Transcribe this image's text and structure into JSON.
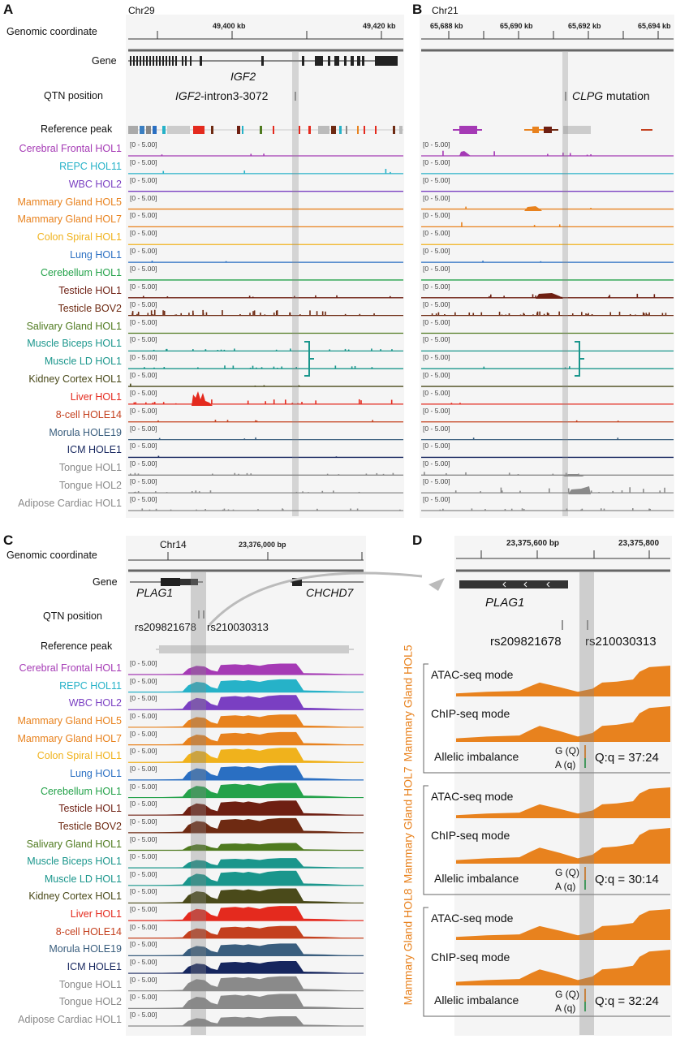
{
  "panels": {
    "A": "A",
    "B": "B",
    "C": "C",
    "D": "D"
  },
  "A": {
    "chrom": "Chr29",
    "coord_label": "Genomic coordinate",
    "ticks": [
      "49,400 kb",
      "49,420 kb"
    ],
    "gene_label": "Gene",
    "gene_name": "IGF2",
    "qtn_label": "QTN position",
    "qtn_name_italic": "IGF2",
    "qtn_name_rest": "-intron3-3072",
    "peak_label": "Reference peak"
  },
  "B": {
    "chrom": "Chr21",
    "ticks": [
      "65,688 kb",
      "65,690 kb",
      "65,692 kb",
      "65,694 kb"
    ],
    "mutation_italic": "CLPG",
    "mutation_rest": " mutation"
  },
  "C": {
    "chrom": "Chr14",
    "coord_label": "Genomic coordinate",
    "tick": "23,376,000 bp",
    "gene_label": "Gene",
    "gene1": "PLAG1",
    "gene2": "CHCHD7",
    "qtn_label": "QTN position",
    "snp1": "rs209821678",
    "snp2": "rs210030313",
    "peak_label": "Reference peak"
  },
  "D": {
    "ticks": [
      "23,375,600 bp",
      "23,375,800"
    ],
    "gene": "PLAG1",
    "snp1": "rs209821678",
    "snp2": "rs210030313",
    "groups": [
      {
        "name": "Mammary Gland HOL5",
        "atac": "ATAC-seq mode",
        "chip": "ChIP-seq mode",
        "allelic": "Allelic imbalance",
        "g": "G (Q)",
        "a": "A (q)",
        "ratio": "Q:q = 37:24"
      },
      {
        "name": "Mammary Gland HOL7",
        "atac": "ATAC-seq mode",
        "chip": "ChIP-seq mode",
        "allelic": "Allelic imbalance",
        "g": "G (Q)",
        "a": "A (q)",
        "ratio": "Q:q = 30:14"
      },
      {
        "name": "Mammary Gland HOL8",
        "atac": "ATAC-seq mode",
        "chip": "ChIP-seq mode",
        "allelic": "Allelic imbalance",
        "g": "G (Q)",
        "a": "A (q)",
        "ratio": "Q:q = 32:24"
      }
    ]
  },
  "range_label": "[0 - 5.00]",
  "tracks": [
    {
      "name": "Cerebral Frontal HOL1",
      "color": "#a53ab5"
    },
    {
      "name": "REPC HOL11",
      "color": "#26b2c8"
    },
    {
      "name": "WBC HOL2",
      "color": "#7a3fc2"
    },
    {
      "name": "Mammary Gland HOL5",
      "color": "#e8821e"
    },
    {
      "name": "Mammary Gland HOL7",
      "color": "#e8821e"
    },
    {
      "name": "Colon Spiral HOL1",
      "color": "#f0b21c"
    },
    {
      "name": "Lung HOL1",
      "color": "#2a6fc2"
    },
    {
      "name": "Cerebellum HOL1",
      "color": "#24a24a"
    },
    {
      "name": "Testicle HOL1",
      "color": "#6e1f12"
    },
    {
      "name": "Testicle BOV2",
      "color": "#6e2a12"
    },
    {
      "name": "Salivary Gland HOL1",
      "color": "#4f7a1f"
    },
    {
      "name": "Muscle Biceps HOL1",
      "color": "#1a968c"
    },
    {
      "name": "Muscle LD HOL1",
      "color": "#1a968c"
    },
    {
      "name": "Kidney Cortex HOL1",
      "color": "#4a4a1a"
    },
    {
      "name": "Liver HOL1",
      "color": "#e42a1e"
    },
    {
      "name": "8-cell HOLE14",
      "color": "#c4401e"
    },
    {
      "name": "Morula HOLE19",
      "color": "#3a5e7e"
    },
    {
      "name": "ICM HOLE1",
      "color": "#16265e"
    },
    {
      "name": "Tongue HOL1",
      "color": "#8a8a8a"
    },
    {
      "name": "Tongue HOL2",
      "color": "#8a8a8a"
    },
    {
      "name": "Adipose Cardiac HOL1",
      "color": "#8a8a8a"
    }
  ]
}
